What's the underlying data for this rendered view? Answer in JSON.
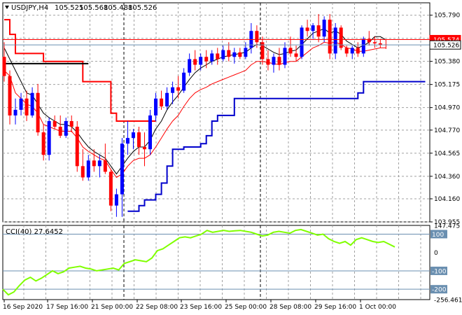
{
  "header": {
    "title": "USDJPY,H4",
    "ohlc": [
      "105.525",
      "105.568",
      "105.488",
      "105.526"
    ]
  },
  "chart_data": [
    {
      "type": "candlestick",
      "symbol": "USDJPY",
      "timeframe": "H4",
      "ylim": [
        103.955,
        105.9
      ],
      "y_ticks": [
        "105.790",
        "105.585",
        "105.380",
        "105.175",
        "104.970",
        "104.770",
        "104.565",
        "104.360",
        "104.160",
        "103.955"
      ],
      "x_ticks": [
        "16 Sep 2020",
        "17 Sep 16:00",
        "21 Sep 00:00",
        "22 Sep 08:00",
        "23 Sep 16:00",
        "25 Sep 00:00",
        "28 Sep 08:00",
        "29 Sep 16:00",
        "1 Oct 00:00"
      ],
      "price_badges": [
        {
          "value": "105.574",
          "color": "#ff0000"
        },
        {
          "value": "105.526",
          "color": "#ffffff"
        }
      ],
      "candles": [
        {
          "o": 105.42,
          "h": 105.55,
          "l": 105.2,
          "c": 105.25
        },
        {
          "o": 105.25,
          "h": 105.3,
          "l": 104.82,
          "c": 104.9
        },
        {
          "o": 104.9,
          "h": 105.05,
          "l": 104.82,
          "c": 104.95
        },
        {
          "o": 104.95,
          "h": 105.1,
          "l": 104.9,
          "c": 105.05
        },
        {
          "o": 105.05,
          "h": 105.12,
          "l": 104.85,
          "c": 104.9
        },
        {
          "o": 104.9,
          "h": 105.15,
          "l": 104.88,
          "c": 105.1
        },
        {
          "o": 105.1,
          "h": 105.18,
          "l": 104.72,
          "c": 104.75
        },
        {
          "o": 104.75,
          "h": 104.82,
          "l": 104.5,
          "c": 104.55
        },
        {
          "o": 104.55,
          "h": 104.88,
          "l": 104.5,
          "c": 104.85
        },
        {
          "o": 104.85,
          "h": 104.9,
          "l": 104.78,
          "c": 104.8
        },
        {
          "o": 104.8,
          "h": 104.9,
          "l": 104.7,
          "c": 104.72
        },
        {
          "o": 104.72,
          "h": 104.88,
          "l": 104.7,
          "c": 104.85
        },
        {
          "o": 104.85,
          "h": 104.9,
          "l": 104.75,
          "c": 104.8
        },
        {
          "o": 104.8,
          "h": 104.85,
          "l": 104.4,
          "c": 104.45
        },
        {
          "o": 104.45,
          "h": 104.6,
          "l": 104.32,
          "c": 104.35
        },
        {
          "o": 104.35,
          "h": 104.55,
          "l": 104.32,
          "c": 104.5
        },
        {
          "o": 104.5,
          "h": 104.6,
          "l": 104.4,
          "c": 104.45
        },
        {
          "o": 104.45,
          "h": 104.55,
          "l": 104.35,
          "c": 104.5
        },
        {
          "o": 104.5,
          "h": 104.65,
          "l": 104.38,
          "c": 104.4
        },
        {
          "o": 104.4,
          "h": 104.42,
          "l": 104.05,
          "c": 104.1
        },
        {
          "o": 104.1,
          "h": 104.25,
          "l": 104.0,
          "c": 104.2
        },
        {
          "o": 104.2,
          "h": 104.7,
          "l": 104.0,
          "c": 104.65
        },
        {
          "o": 104.65,
          "h": 104.85,
          "l": 104.55,
          "c": 104.7
        },
        {
          "o": 104.7,
          "h": 104.78,
          "l": 104.6,
          "c": 104.75
        },
        {
          "o": 104.75,
          "h": 104.8,
          "l": 104.55,
          "c": 104.62
        },
        {
          "o": 104.62,
          "h": 104.75,
          "l": 104.45,
          "c": 104.6
        },
        {
          "o": 104.6,
          "h": 104.95,
          "l": 104.55,
          "c": 104.9
        },
        {
          "o": 104.9,
          "h": 105.1,
          "l": 104.85,
          "c": 105.05
        },
        {
          "o": 105.05,
          "h": 105.12,
          "l": 104.95,
          "c": 104.98
        },
        {
          "o": 104.98,
          "h": 105.15,
          "l": 104.95,
          "c": 105.1
        },
        {
          "o": 105.1,
          "h": 105.2,
          "l": 105.0,
          "c": 105.15
        },
        {
          "o": 105.15,
          "h": 105.25,
          "l": 105.05,
          "c": 105.12
        },
        {
          "o": 105.12,
          "h": 105.32,
          "l": 105.1,
          "c": 105.28
        },
        {
          "o": 105.28,
          "h": 105.45,
          "l": 105.25,
          "c": 105.4
        },
        {
          "o": 105.4,
          "h": 105.48,
          "l": 105.3,
          "c": 105.35
        },
        {
          "o": 105.35,
          "h": 105.45,
          "l": 105.3,
          "c": 105.42
        },
        {
          "o": 105.42,
          "h": 105.48,
          "l": 105.32,
          "c": 105.38
        },
        {
          "o": 105.38,
          "h": 105.48,
          "l": 105.35,
          "c": 105.45
        },
        {
          "o": 105.45,
          "h": 105.5,
          "l": 105.35,
          "c": 105.4
        },
        {
          "o": 105.4,
          "h": 105.52,
          "l": 105.38,
          "c": 105.48
        },
        {
          "o": 105.48,
          "h": 105.55,
          "l": 105.38,
          "c": 105.42
        },
        {
          "o": 105.42,
          "h": 105.5,
          "l": 105.36,
          "c": 105.46
        },
        {
          "o": 105.46,
          "h": 105.5,
          "l": 105.4,
          "c": 105.42
        },
        {
          "o": 105.42,
          "h": 105.55,
          "l": 105.4,
          "c": 105.5
        },
        {
          "o": 105.5,
          "h": 105.72,
          "l": 105.45,
          "c": 105.65
        },
        {
          "o": 105.65,
          "h": 105.7,
          "l": 105.5,
          "c": 105.55
        },
        {
          "o": 105.55,
          "h": 105.6,
          "l": 105.35,
          "c": 105.4
        },
        {
          "o": 105.4,
          "h": 105.48,
          "l": 105.3,
          "c": 105.35
        },
        {
          "o": 105.35,
          "h": 105.45,
          "l": 105.28,
          "c": 105.42
        },
        {
          "o": 105.42,
          "h": 105.5,
          "l": 105.3,
          "c": 105.35
        },
        {
          "o": 105.35,
          "h": 105.55,
          "l": 105.32,
          "c": 105.5
        },
        {
          "o": 105.5,
          "h": 105.6,
          "l": 105.42,
          "c": 105.45
        },
        {
          "o": 105.45,
          "h": 105.52,
          "l": 105.38,
          "c": 105.42
        },
        {
          "o": 105.42,
          "h": 105.7,
          "l": 105.4,
          "c": 105.68
        },
        {
          "o": 105.68,
          "h": 105.75,
          "l": 105.6,
          "c": 105.65
        },
        {
          "o": 105.65,
          "h": 105.72,
          "l": 105.58,
          "c": 105.7
        },
        {
          "o": 105.7,
          "h": 105.8,
          "l": 105.55,
          "c": 105.6
        },
        {
          "o": 105.6,
          "h": 105.78,
          "l": 105.55,
          "c": 105.75
        },
        {
          "o": 105.75,
          "h": 105.8,
          "l": 105.4,
          "c": 105.45
        },
        {
          "o": 105.45,
          "h": 105.72,
          "l": 105.4,
          "c": 105.68
        },
        {
          "o": 105.68,
          "h": 105.7,
          "l": 105.48,
          "c": 105.5
        },
        {
          "o": 105.5,
          "h": 105.52,
          "l": 105.42,
          "c": 105.45
        },
        {
          "o": 105.45,
          "h": 105.52,
          "l": 105.4,
          "c": 105.5
        },
        {
          "o": 105.5,
          "h": 105.55,
          "l": 105.42,
          "c": 105.45
        },
        {
          "o": 105.45,
          "h": 105.6,
          "l": 105.42,
          "c": 105.58
        },
        {
          "o": 105.58,
          "h": 105.65,
          "l": 105.52,
          "c": 105.55
        },
        {
          "o": 105.55,
          "h": 105.6,
          "l": 105.5,
          "c": 105.54
        },
        {
          "o": 105.54,
          "h": 105.58,
          "l": 105.5,
          "c": 105.53
        },
        {
          "o": 105.53,
          "h": 105.57,
          "l": 105.49,
          "c": 105.526
        }
      ],
      "indicator_lines": [
        {
          "color": "#ff0000",
          "width": 2,
          "values": [
            105.75,
            105.62,
            105.45,
            105.45,
            105.45,
            105.45,
            105.45,
            105.38,
            105.38,
            105.38,
            105.38,
            105.38,
            105.38,
            105.38,
            105.2,
            105.2,
            105.2,
            105.2,
            105.2,
            104.92,
            104.85,
            104.85,
            104.85,
            104.85,
            104.85,
            104.85,
            104.85,
            104.85
          ]
        },
        {
          "color": "#000000",
          "width": 2,
          "values": [
            105.36,
            105.36,
            105.36,
            105.36,
            105.36,
            105.36,
            105.36,
            105.36,
            105.36,
            105.36,
            105.36,
            105.36,
            105.36,
            105.36,
            105.36,
            105.36
          ]
        },
        {
          "color": "#0000cc",
          "width": 2,
          "start": 22,
          "values": [
            104.05,
            104.05,
            104.1,
            104.15,
            104.15,
            104.2,
            104.3,
            104.45,
            104.6,
            104.6,
            104.62,
            104.62,
            104.62,
            104.65,
            104.72,
            104.85,
            104.9,
            104.9,
            104.9,
            105.05,
            105.05,
            105.05,
            105.05,
            105.05,
            105.05,
            105.05,
            105.05,
            105.05,
            105.05,
            105.05,
            105.05,
            105.05,
            105.05,
            105.05,
            105.05,
            105.05,
            105.05,
            105.05,
            105.05,
            105.05,
            105.05,
            105.1,
            105.2,
            105.2,
            105.2,
            105.2,
            105.2,
            105.2,
            105.2,
            105.2,
            105.2,
            105.2,
            105.2,
            105.2
          ]
        },
        {
          "color": "#ff0000",
          "width": 1,
          "values": [
            105.3,
            105.25,
            105.1,
            105.05,
            105.0,
            104.98,
            104.92,
            104.82,
            104.8,
            104.78,
            104.76,
            104.76,
            104.76,
            104.7,
            104.62,
            104.58,
            104.55,
            104.52,
            104.5,
            104.42,
            104.35,
            104.38,
            104.45,
            104.5,
            104.52,
            104.52,
            104.55,
            104.62,
            104.7,
            104.78,
            104.85,
            104.9,
            104.98,
            105.05,
            105.1,
            105.13,
            105.15,
            105.18,
            105.2,
            105.22,
            105.24,
            105.26,
            105.28,
            105.3,
            105.35,
            105.38,
            105.38,
            105.37,
            105.36,
            105.35,
            105.37,
            105.38,
            105.38,
            105.42,
            105.46,
            105.5,
            105.52,
            105.55,
            105.54,
            105.55,
            105.53,
            105.5,
            105.49,
            105.47,
            105.47,
            105.48,
            105.49,
            105.5,
            105.5
          ]
        },
        {
          "color": "#000000",
          "width": 1,
          "values": [
            105.5,
            105.4,
            105.3,
            105.2,
            105.1,
            105.08,
            105.0,
            104.92,
            104.88,
            104.85,
            104.82,
            104.82,
            104.8,
            104.75,
            104.68,
            104.62,
            104.58,
            104.55,
            104.52,
            104.45,
            104.38,
            104.45,
            104.52,
            104.58,
            104.62,
            104.62,
            104.68,
            104.78,
            104.85,
            104.95,
            105.02,
            105.08,
            105.15,
            105.22,
            105.28,
            105.32,
            105.35,
            105.38,
            105.4,
            105.42,
            105.43,
            105.44,
            105.45,
            105.46,
            105.5,
            105.53,
            105.52,
            105.49,
            105.46,
            105.44,
            105.45,
            105.47,
            105.48,
            105.53,
            105.58,
            105.63,
            105.65,
            105.67,
            105.63,
            105.65,
            105.62,
            105.56,
            105.53,
            105.5,
            105.52,
            105.55,
            105.6,
            105.6,
            105.57
          ]
        }
      ]
    },
    {
      "type": "line",
      "title": "CCI(40) 27.6452",
      "ylim": [
        -256.4617,
        147.475
      ],
      "y_ticks": [
        "147.475",
        "100",
        "0",
        "-100",
        "-200",
        "-256.4617"
      ],
      "levels": [
        100,
        -100,
        -200
      ],
      "series": [
        {
          "color": "#80ff00",
          "values": [
            -200,
            -230,
            -215,
            -180,
            -150,
            -135,
            -155,
            -140,
            -120,
            -100,
            -115,
            -105,
            -85,
            -80,
            -75,
            -85,
            -90,
            -100,
            -95,
            -90,
            -85,
            -95,
            -60,
            -50,
            -40,
            -45,
            -50,
            -30,
            10,
            20,
            40,
            60,
            80,
            85,
            80,
            90,
            100,
            120,
            110,
            115,
            120,
            115,
            118,
            120,
            115,
            110,
            100,
            90,
            95,
            110,
            115,
            110,
            105,
            120,
            125,
            115,
            105,
            95,
            100,
            75,
            60,
            50,
            60,
            40,
            70,
            80,
            70,
            60,
            55,
            60,
            45,
            30
          ]
        }
      ]
    }
  ]
}
